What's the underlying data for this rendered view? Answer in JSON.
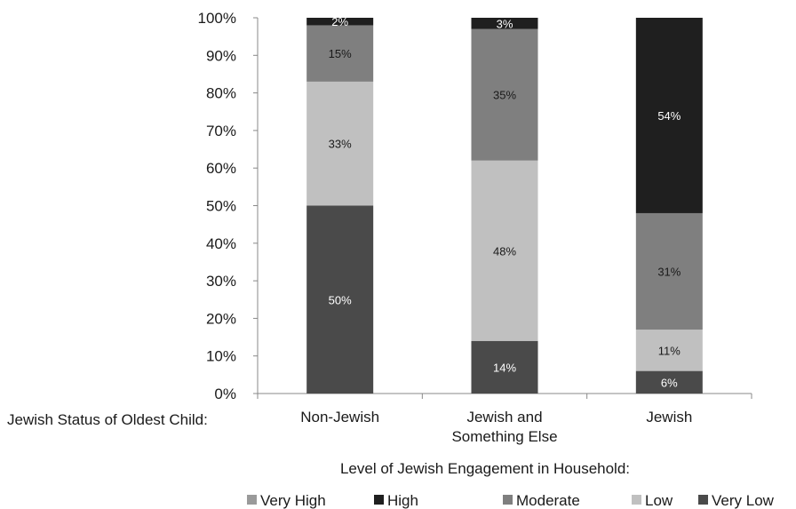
{
  "chart_data": {
    "type": "bar",
    "stacked": true,
    "row_label": "Jewish Status of Oldest Child:",
    "categories": [
      [
        "Non-Jewish"
      ],
      [
        "Jewish and",
        "Something Else"
      ],
      [
        "Jewish"
      ]
    ],
    "xlabel": "Level of Jewish Engagement in Household:",
    "ylim": [
      0,
      100
    ],
    "yticks": [
      "0%",
      "10%",
      "20%",
      "30%",
      "40%",
      "50%",
      "60%",
      "70%",
      "80%",
      "90%",
      "100%"
    ],
    "series": [
      {
        "name": "Very Low",
        "color": "#4a4a4a",
        "label_color": "#ffffff",
        "values": [
          50,
          14,
          6
        ]
      },
      {
        "name": "Low",
        "color": "#c0c0c0",
        "label_color": "#1a1a1a",
        "values": [
          33,
          48,
          11
        ]
      },
      {
        "name": "Moderate",
        "color": "#7f7f7f",
        "label_color": "#1a1a1a",
        "values": [
          15,
          35,
          31
        ]
      },
      {
        "name": "High",
        "color": "#1f1f1f",
        "label_color": "#ffffff",
        "values": [
          2,
          3,
          54
        ]
      },
      {
        "name": "Very High",
        "color": "#9a9a9a",
        "label_color": "#1a1a1a",
        "values": [
          0,
          0,
          0
        ]
      }
    ],
    "data_labels": [
      [
        "50%",
        "33%",
        "15%",
        "2%",
        ""
      ],
      [
        "14%",
        "48%",
        "35%",
        "3%",
        ""
      ],
      [
        "6%",
        "11%",
        "31%",
        "54%",
        ""
      ]
    ],
    "legend": {
      "position": "bottom",
      "order": [
        "Very High",
        "High",
        "Moderate",
        "Low",
        "Very Low"
      ]
    },
    "grid": false
  }
}
